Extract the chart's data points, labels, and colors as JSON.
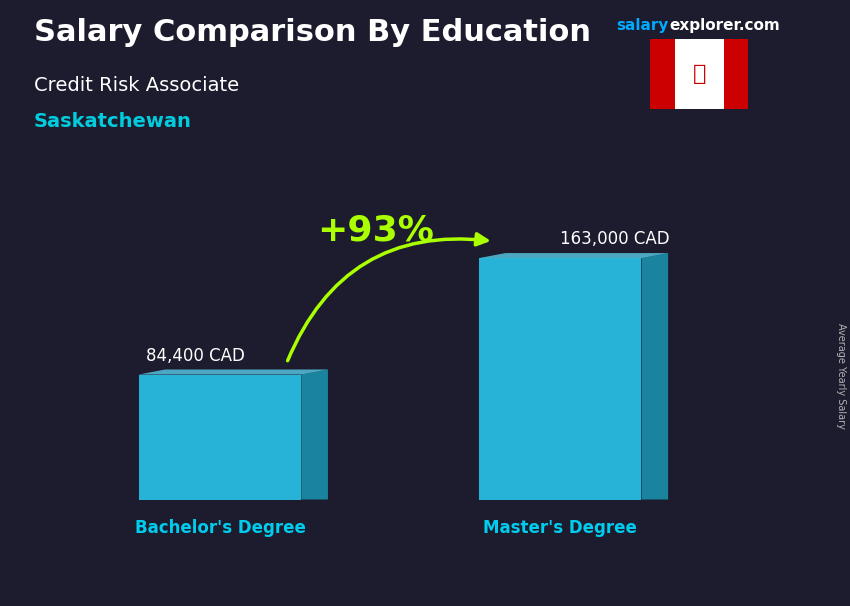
{
  "title_main": "Salary Comparison By Education",
  "title_sub1": "Credit Risk Associate",
  "title_sub2": "Saskatchewan",
  "site_salary": "salary",
  "site_explorer": "explorer.com",
  "ylabel_rotated": "Average Yearly Salary",
  "categories": [
    "Bachelor's Degree",
    "Master's Degree"
  ],
  "values": [
    84400,
    163000
  ],
  "value_labels": [
    "84,400 CAD",
    "163,000 CAD"
  ],
  "pct_change": "+93%",
  "bar_color_face": "#29c8f0",
  "bar_color_right": "#1a8faa",
  "bar_color_top": "#5dd8f5",
  "bg_color": "#1c1c2e",
  "title_color": "#ffffff",
  "subtitle1_color": "#ffffff",
  "subtitle2_color": "#00ccdd",
  "value_label_color": "#ffffff",
  "category_label_color": "#00ccee",
  "pct_color": "#aaff00",
  "arrow_color": "#aaff00",
  "site_salary_color": "#00aaff",
  "site_explorer_color": "#ffffff",
  "rotated_label_color": "#cccccc",
  "ylim_max": 190000
}
